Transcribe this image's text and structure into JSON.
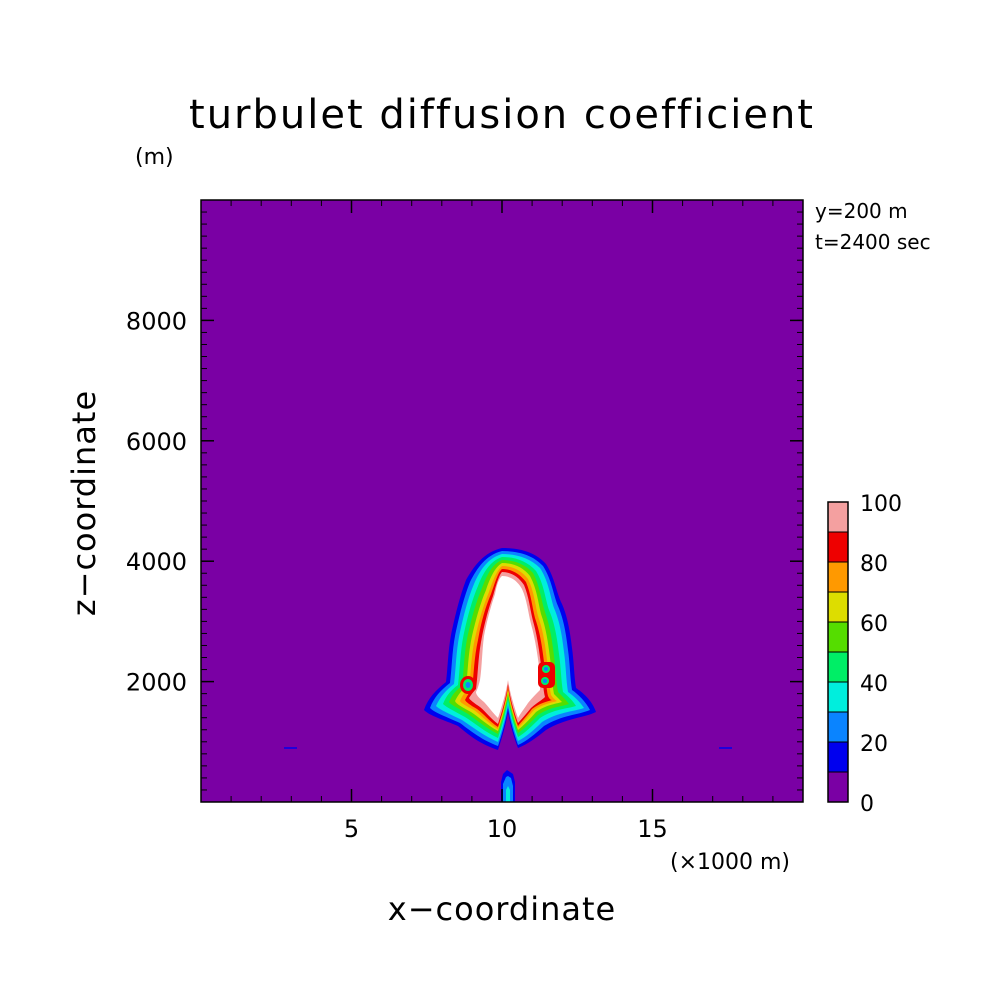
{
  "chart_data": {
    "type": "heatmap",
    "title": "turbulet diffusion coefficient",
    "xlabel": "x−coordinate",
    "ylabel": "z−coordinate",
    "x_unit_label": "(×1000 m)",
    "z_unit_label": "(m)",
    "annotations": [
      "y=200 m",
      "t=2400 sec"
    ],
    "xlim": [
      0,
      20
    ],
    "ylim": [
      0,
      10000
    ],
    "x_ticks": [
      5,
      10,
      15
    ],
    "y_ticks": [
      2000,
      4000,
      6000,
      8000
    ],
    "colorbar": {
      "levels": [
        0,
        10,
        20,
        30,
        40,
        50,
        60,
        70,
        80,
        90,
        100
      ],
      "tick_labels": [
        "0",
        "20",
        "40",
        "60",
        "80",
        "100"
      ],
      "colors": [
        "#7a00a4",
        "#0000ee",
        "#0a84ff",
        "#00eedd",
        "#00ee66",
        "#55dd00",
        "#dddd00",
        "#ff9900",
        "#ee0000",
        "#f4a0a0"
      ],
      "above_max_color": "#ffffff"
    },
    "structure": {
      "description_values": "plume of high diffusion coefficient centered at x=10 (x1000 m), core above 100 extending roughly from z=900 m to z=4200 m",
      "core_top_z": 4200,
      "core_base_z": 900,
      "core_x_range": [
        7.8,
        12.8
      ],
      "stem_x": 10,
      "stem_top_z": 500
    }
  }
}
